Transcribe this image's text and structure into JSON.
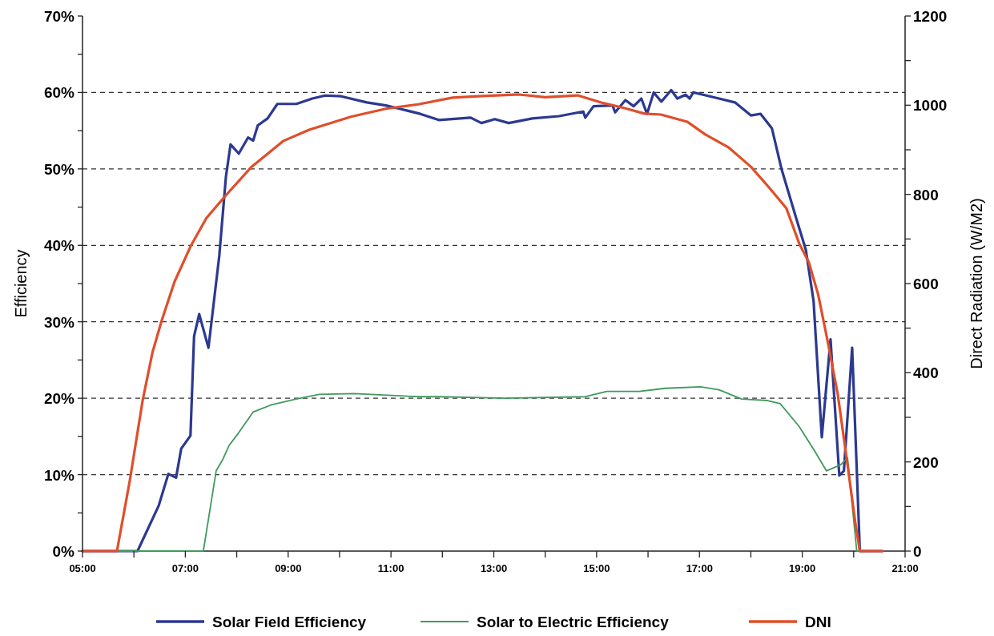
{
  "chart_data": {
    "type": "line",
    "ylabel": "Efficiency",
    "y2label": "Direct Radiation (W/M2)",
    "xlim": [
      5,
      21
    ],
    "xticks": [
      {
        "value": 5,
        "label": "05:00"
      },
      {
        "value": 6,
        "label": null
      },
      {
        "value": 7,
        "label": "07:00"
      },
      {
        "value": 8,
        "label": null
      },
      {
        "value": 9,
        "label": "09:00"
      },
      {
        "value": 10,
        "label": null
      },
      {
        "value": 11,
        "label": "11:00"
      },
      {
        "value": 12,
        "label": null
      },
      {
        "value": 13,
        "label": "13:00"
      },
      {
        "value": 14,
        "label": null
      },
      {
        "value": 15,
        "label": "15:00"
      },
      {
        "value": 16,
        "label": null
      },
      {
        "value": 17,
        "label": "17:00"
      },
      {
        "value": 18,
        "label": null
      },
      {
        "value": 19,
        "label": "19:00"
      },
      {
        "value": 20,
        "label": null
      },
      {
        "value": 21,
        "label": "21:00"
      }
    ],
    "ylim": [
      0,
      70
    ],
    "yticks": [
      {
        "value": 0,
        "label": "0%"
      },
      {
        "value": 5,
        "label": null
      },
      {
        "value": 10,
        "label": "10%"
      },
      {
        "value": 15,
        "label": null
      },
      {
        "value": 20,
        "label": "20%"
      },
      {
        "value": 25,
        "label": null
      },
      {
        "value": 30,
        "label": "30%"
      },
      {
        "value": 35,
        "label": null
      },
      {
        "value": 40,
        "label": "40%"
      },
      {
        "value": 45,
        "label": null
      },
      {
        "value": 50,
        "label": "50%"
      },
      {
        "value": 55,
        "label": null
      },
      {
        "value": 60,
        "label": "60%"
      },
      {
        "value": 65,
        "label": null
      },
      {
        "value": 70,
        "label": "70%"
      }
    ],
    "y2lim": [
      0,
      1200
    ],
    "y2ticks": [
      0,
      {
        "value": 100,
        "label": null
      },
      200,
      {
        "value": 300,
        "label": null
      },
      400,
      {
        "value": 500,
        "label": null
      },
      600,
      {
        "value": 700,
        "label": null
      },
      800,
      {
        "value": 900,
        "label": null
      },
      1000,
      {
        "value": 1100,
        "label": null
      },
      1200
    ],
    "grid": "y",
    "legend": "bottom",
    "line_style": "solid",
    "series": [
      {
        "name": "Solar Field Efficiency",
        "color": "#2b3990",
        "x": [
          5,
          6.07,
          6.48,
          6.67,
          6.82,
          6.92,
          7.1,
          7.17,
          7.27,
          7.45,
          7.66,
          7.79,
          7.88,
          8.04,
          8.22,
          8.32,
          8.41,
          8.6,
          8.79,
          9.16,
          9.47,
          9.72,
          10.03,
          10.53,
          10.9,
          11.15,
          11.57,
          11.93,
          12.55,
          12.76,
          13.02,
          13.29,
          13.75,
          14.27,
          14.74,
          14.78,
          14.94,
          15.31,
          15.36,
          15.56,
          15.72,
          15.87,
          15.98,
          16.11,
          16.26,
          16.45,
          16.57,
          16.73,
          16.81,
          16.88,
          17.07,
          17.38,
          17.69,
          18.0,
          18.19,
          18.41,
          18.6,
          18.88,
          19.07,
          19.22,
          19.38,
          19.55,
          19.72,
          19.81,
          19.97,
          20.12,
          20.56
        ],
        "values": [
          0,
          0,
          5.9,
          10.1,
          9.6,
          13.4,
          15.1,
          28.1,
          31.0,
          26.6,
          38.6,
          49,
          53.2,
          52,
          54.1,
          53.7,
          55.7,
          56.6,
          58.5,
          58.5,
          59.2,
          59.6,
          59.5,
          58.7,
          58.3,
          57.9,
          57.2,
          56.4,
          56.7,
          56.0,
          56.5,
          56.0,
          56.6,
          56.9,
          57.5,
          56.7,
          58.2,
          58.3,
          57.4,
          59,
          58.2,
          59.2,
          57.2,
          60,
          58.8,
          60.3,
          59.2,
          59.7,
          59.2,
          60,
          59.7,
          59.2,
          58.7,
          57.0,
          57.2,
          55.3,
          49.9,
          43.6,
          39.4,
          32.7,
          14.9,
          27.7,
          9.9,
          10.5,
          26.6,
          0,
          0
        ]
      },
      {
        "name": "Solar to Electric Efficiency",
        "color": "#3f9a5c",
        "x": [
          5,
          7.35,
          7.6,
          7.73,
          7.85,
          8.04,
          8.32,
          8.66,
          9.16,
          9.6,
          10.28,
          11.53,
          11.93,
          13.22,
          14.78,
          15.2,
          15.83,
          16.34,
          17.02,
          17.38,
          17.82,
          18.32,
          18.57,
          18.94,
          19.25,
          19.47,
          19.75,
          19.88,
          20.06,
          20.56
        ],
        "values": [
          0,
          0,
          10.5,
          12,
          13.8,
          15.5,
          18.2,
          19.1,
          19.9,
          20.5,
          20.6,
          20.2,
          20.2,
          20.0,
          20.2,
          20.9,
          20.9,
          21.3,
          21.5,
          21.1,
          19.9,
          19.7,
          19.3,
          16.3,
          13.0,
          10.5,
          11.3,
          12.2,
          0,
          0
        ]
      },
      {
        "name": "DNI",
        "color": "#e04e2a",
        "axis": "y2",
        "x": [
          5,
          5.67,
          5.92,
          6.17,
          6.36,
          6.54,
          6.79,
          7.1,
          7.41,
          7.79,
          8.29,
          8.91,
          9.41,
          10.22,
          10.9,
          11.53,
          12.2,
          12.71,
          13.49,
          14.0,
          14.63,
          15.09,
          15.56,
          15.93,
          16.25,
          16.76,
          17.12,
          17.57,
          18.0,
          18.38,
          18.69,
          18.94,
          19.13,
          19.31,
          19.5,
          19.69,
          19.88,
          20.03,
          20.12,
          20.56
        ],
        "values": [
          0,
          0,
          158,
          338,
          445,
          517,
          604,
          683,
          747,
          798,
          862,
          920,
          945,
          974,
          992,
          1002,
          1017,
          1020,
          1024,
          1018,
          1022,
          1006,
          993,
          981,
          979,
          963,
          934,
          905,
          862,
          812,
          769,
          690,
          647,
          575,
          467,
          352,
          194,
          65,
          0,
          0
        ]
      }
    ]
  }
}
